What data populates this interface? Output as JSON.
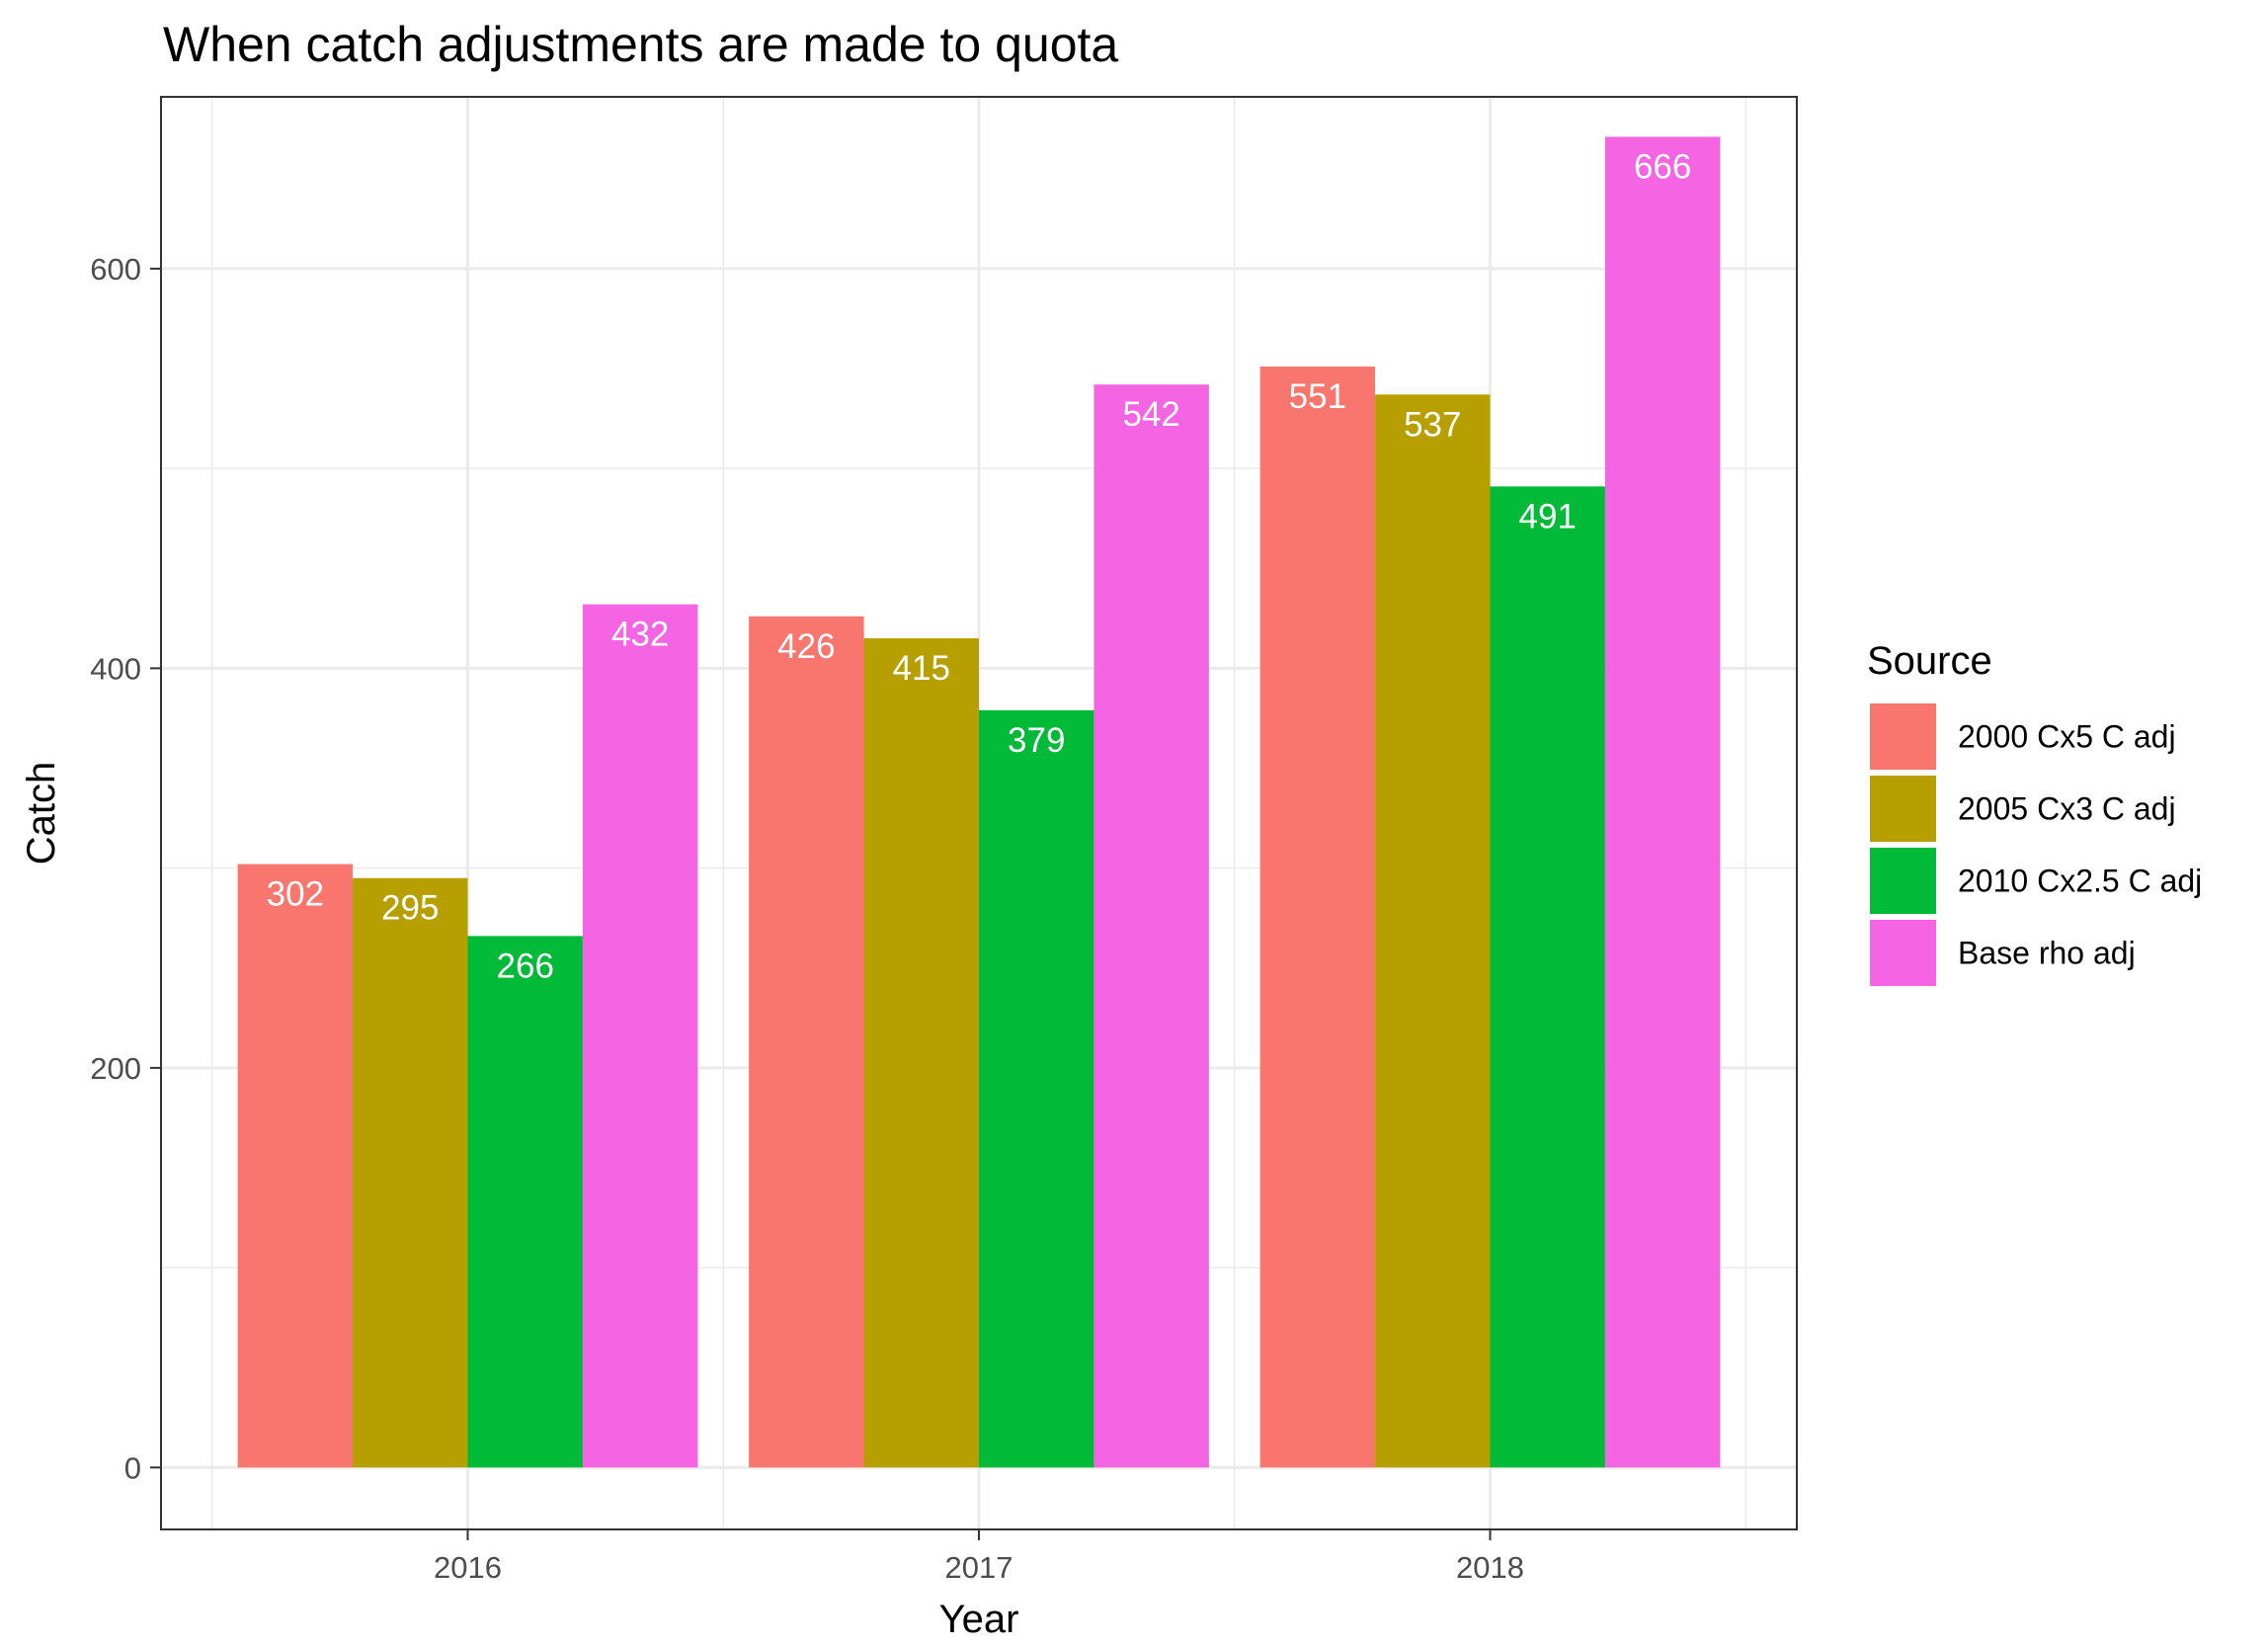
{
  "chart_data": {
    "type": "bar",
    "title": "When catch adjustments are made to quota",
    "xlabel": "Year",
    "ylabel": "Catch",
    "categories": [
      "2016",
      "2017",
      "2018"
    ],
    "y_ticks": [
      0,
      200,
      400,
      600
    ],
    "ylim": [
      -31,
      686
    ],
    "grid": true,
    "legend": {
      "title": "Source",
      "position": "right"
    },
    "series": [
      {
        "name": "2000 Cx5 C adj",
        "color": "#F8766D",
        "values": [
          302,
          426,
          551
        ]
      },
      {
        "name": "2005 Cx3 C adj",
        "color": "#B79F00",
        "values": [
          295,
          415,
          537
        ]
      },
      {
        "name": "2010 Cx2.5 C adj",
        "color": "#00BA38",
        "values": [
          266,
          379,
          491
        ]
      },
      {
        "name": "Base rho adj",
        "color": "#F564E3",
        "values": [
          432,
          542,
          666
        ]
      }
    ]
  }
}
